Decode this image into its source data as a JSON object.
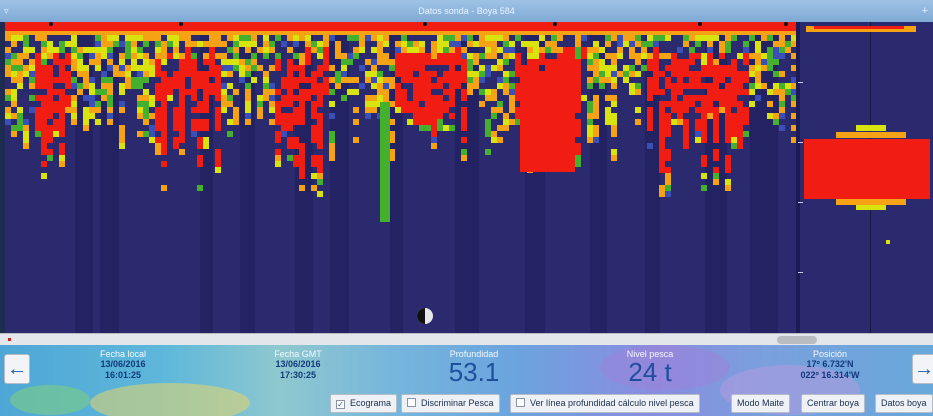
{
  "window": {
    "title": "Datos sonda - Boya 584",
    "menu_glyph": "▿",
    "close_glyph": "+"
  },
  "info": {
    "fecha_local": {
      "label": "Fecha local",
      "date": "13/06/2016",
      "time": "16:01:25"
    },
    "fecha_gmt": {
      "label": "Fecha GMT",
      "date": "13/06/2016",
      "time": "17:30:25"
    },
    "profundidad": {
      "label": "Profundidad",
      "value": "53.1"
    },
    "nivel_pesca": {
      "label": "Nivel pesca",
      "value": "24 t"
    },
    "posicion": {
      "label": "Posición",
      "lat": "17º 6.732'N",
      "lon": "022º 16.314'W"
    }
  },
  "nav": {
    "prev_icon": "arrow-left-icon",
    "next_icon": "arrow-right-icon",
    "prev_glyph": "←",
    "next_glyph": "→"
  },
  "controls": {
    "ecograma": {
      "label": "Ecograma",
      "checked": true,
      "mark": "✓"
    },
    "discriminar": {
      "label": "Discriminar Pesca",
      "checked": false
    },
    "ver_linea": {
      "label": "Ver línea profundidad cálculo nivel pesca",
      "checked": false
    },
    "modo_maite": "Modo Maite",
    "centrar_boya": "Centrar boya",
    "datos_boya": "Datos boya"
  },
  "colors": {
    "background": "#2b2a6e",
    "red": "#f21d12",
    "orange": "#f5a315",
    "yellow": "#d9e40e",
    "green": "#45b02e",
    "blue": "#3a4fb8"
  }
}
